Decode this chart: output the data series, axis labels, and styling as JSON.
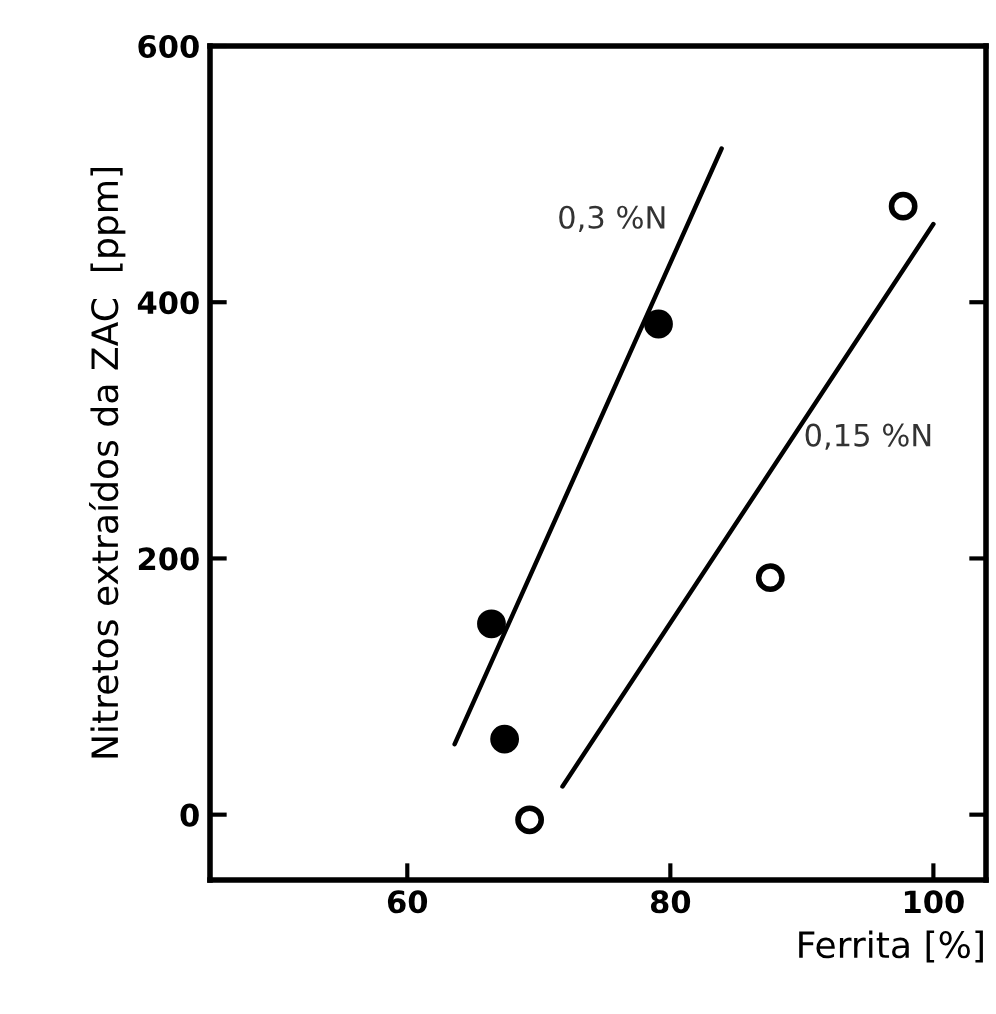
{
  "chart_data": {
    "type": "scatter",
    "xlabel": "Ferrita [%]",
    "ylabel": "Nitretos extraídos da ZAC  [ppm]",
    "xlim": [
      45,
      104
    ],
    "xticks": [
      60,
      80,
      100
    ],
    "ylim": [
      -51,
      600
    ],
    "yticks": [
      0,
      200,
      400,
      600
    ],
    "grid": false,
    "legend": false,
    "series": [
      {
        "marker": "circle",
        "color": "#000000",
        "x": [
          66.4,
          67.4,
          79.1
        ],
        "values": [
          149,
          59,
          383
        ]
      },
      {
        "marker": "circle",
        "color": "#000000",
        "x": [
          69.3,
          87.6,
          97.7
        ],
        "values": [
          -4,
          185,
          475
        ]
      },
      {
        "type": "line",
        "marker": "none",
        "name": "0,3 %N",
        "color": "#000000",
        "x": [
          63.6,
          83.9
        ],
        "values": [
          55,
          520
        ]
      },
      {
        "type": "line",
        "marker": "none",
        "name": "0,15 %N",
        "color": "#000000",
        "x": [
          71.8,
          100
        ],
        "values": [
          22,
          461
        ]
      }
    ]
  }
}
